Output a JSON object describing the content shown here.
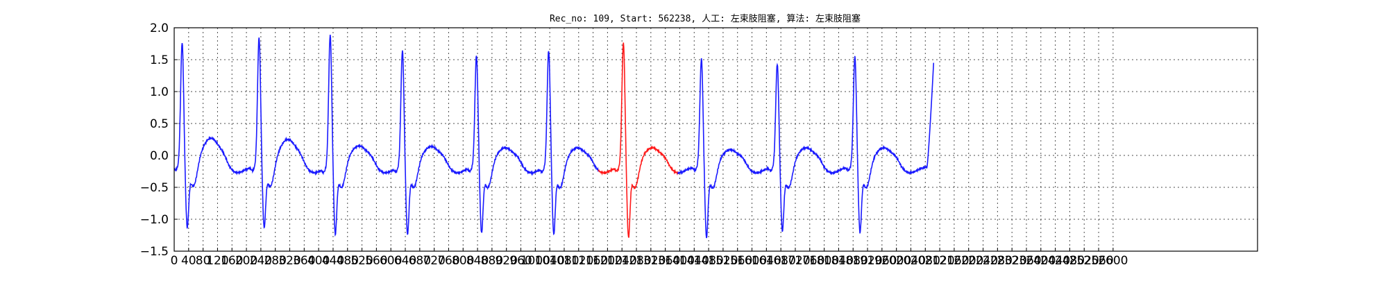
{
  "chart_data": {
    "type": "line",
    "title": "Rec_no: 109, Start: 562238, 人工: 左束肢阻塞, 算法: 左束肢阻塞",
    "xlabel": "",
    "ylabel": "",
    "xlim": [
      0,
      3000
    ],
    "ylim": [
      -1.5,
      2.0
    ],
    "grid": true,
    "xticks": [
      0,
      40,
      80,
      120,
      160,
      200,
      240,
      280,
      320,
      360,
      400,
      440,
      480,
      520,
      560,
      600,
      640,
      680,
      720,
      760,
      800,
      840,
      880,
      920,
      960,
      1000,
      1040,
      1080,
      1120,
      1160,
      1200,
      1240,
      1280,
      1320,
      1360,
      1400,
      1440,
      1480,
      1520,
      1560,
      1600,
      1640,
      1680,
      1720,
      1760,
      1800,
      1840,
      1880,
      1920,
      1960,
      2000,
      2040,
      2080,
      2120,
      2160,
      2200,
      2240,
      2280,
      2320,
      2360,
      2400,
      2440,
      2480,
      2520,
      2560,
      2600
    ],
    "xtick_labels": [
      "0",
      "40",
      "80",
      "120",
      "160",
      "200",
      "240",
      "280",
      "320",
      "360",
      "400",
      "440",
      "480",
      "520",
      "560",
      "600",
      "640",
      "680",
      "720",
      "760",
      "800",
      "840",
      "880",
      "920",
      "960",
      "1000",
      "1040",
      "1080",
      "1120",
      "1160",
      "1200",
      "1240",
      "1280",
      "1320",
      "1360",
      "1400",
      "1440",
      "1480",
      "1520",
      "1560",
      "1600",
      "1640",
      "1680",
      "1720",
      "1760",
      "1800",
      "1840",
      "1880",
      "1920",
      "1960",
      "2000",
      "2040",
      "2080",
      "2120",
      "2160",
      "2200",
      "2240",
      "2280",
      "2320",
      "2360",
      "2400",
      "2440",
      "2480",
      "2520",
      "2560",
      "2600"
    ],
    "yticks": [
      -1.5,
      -1.0,
      -0.5,
      0.0,
      0.5,
      1.0,
      1.5,
      2.0
    ],
    "ytick_labels": [
      "−1.5",
      "−1.0",
      "−0.5",
      "0.0",
      "0.5",
      "1.0",
      "1.5",
      "2.0"
    ],
    "colors": {
      "normal": "#1a1aff",
      "highlight": "#ff1a1a"
    },
    "highlight_range": [
      1175,
      1395
    ],
    "beats": [
      {
        "qrs": 22,
        "peak": 1.7,
        "trough": -0.85,
        "t": 0.1
      },
      {
        "qrs": 235,
        "peak": 1.78,
        "trough": -0.85,
        "t": 0.08
      },
      {
        "qrs": 432,
        "peak": 1.83,
        "trough": -0.95,
        "t": -0.02
      },
      {
        "qrs": 632,
        "peak": 1.58,
        "trough": -0.95,
        "t": -0.03
      },
      {
        "qrs": 837,
        "peak": 1.5,
        "trough": -0.93,
        "t": -0.05
      },
      {
        "qrs": 1037,
        "peak": 1.58,
        "trough": -0.95,
        "t": -0.05
      },
      {
        "qrs": 1244,
        "peak": 1.7,
        "trough": -1.0,
        "t": -0.05
      },
      {
        "qrs": 1460,
        "peak": 1.45,
        "trough": -1.0,
        "t": -0.08
      },
      {
        "qrs": 1670,
        "peak": 1.37,
        "trough": -0.9,
        "t": -0.05
      },
      {
        "qrs": 1885,
        "peak": 1.48,
        "trough": -0.92,
        "t": -0.05
      }
    ],
    "end_point": {
      "x": 2103,
      "y": 1.45
    }
  }
}
